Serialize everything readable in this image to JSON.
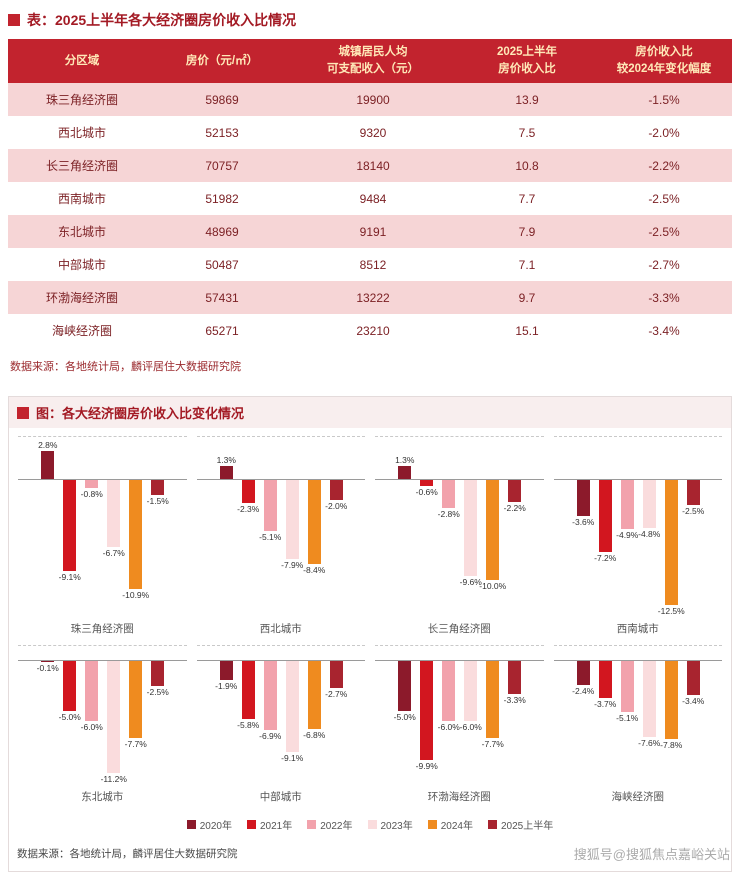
{
  "table_section": {
    "title": "表：2025上半年各大经济圈房价收入比情况",
    "headers": [
      "分区域",
      "房价（元/㎡）",
      "城镇居民人均\n可支配收入（元）",
      "2025上半年\n房价收入比",
      "房价收入比\n较2024年变化幅度"
    ],
    "rows": [
      [
        "珠三角经济圈",
        "59869",
        "19900",
        "13.9",
        "-1.5%"
      ],
      [
        "西北城市",
        "52153",
        "9320",
        "7.5",
        "-2.0%"
      ],
      [
        "长三角经济圈",
        "70757",
        "18140",
        "10.8",
        "-2.2%"
      ],
      [
        "西南城市",
        "51982",
        "9484",
        "7.7",
        "-2.5%"
      ],
      [
        "东北城市",
        "48969",
        "9191",
        "7.9",
        "-2.5%"
      ],
      [
        "中部城市",
        "50487",
        "8512",
        "7.1",
        "-2.7%"
      ],
      [
        "环渤海经济圈",
        "57431",
        "13222",
        "9.7",
        "-3.3%"
      ],
      [
        "海峡经济圈",
        "65271",
        "23210",
        "15.1",
        "-3.4%"
      ]
    ],
    "source": "数据来源：各地统计局，麟评居住大数据研究院"
  },
  "chart_section": {
    "title": "图：各大经济圈房价收入比变化情况",
    "source": "数据来源：各地统计局，麟评居住大数据研究院"
  },
  "chart_data": {
    "type": "bar",
    "title": "各大经济圈房价收入比变化情况",
    "unit": "%",
    "grid": "zero-axis per mini chart, dashed top gridline",
    "legend_position": "bottom",
    "layout": {
      "rows": 2,
      "cols": 4,
      "value_labels": true
    },
    "categories": [
      "珠三角经济圈",
      "西北城市",
      "长三角经济圈",
      "西南城市",
      "东北城市",
      "中部城市",
      "环渤海经济圈",
      "海峡经济圈"
    ],
    "series": [
      {
        "name": "2020年",
        "color": "#8C1A2B",
        "values": [
          2.8,
          1.3,
          1.3,
          -3.6,
          -0.1,
          -1.9,
          -5.0,
          -2.4
        ]
      },
      {
        "name": "2021年",
        "color": "#D2161F",
        "values": [
          -9.1,
          -2.3,
          -0.6,
          -7.2,
          -5.0,
          -5.8,
          -9.9,
          -3.7
        ]
      },
      {
        "name": "2022年",
        "color": "#F2A2AC",
        "values": [
          -0.8,
          -5.1,
          -2.8,
          -4.9,
          -6.0,
          -6.9,
          -6.0,
          -5.1
        ]
      },
      {
        "name": "2023年",
        "color": "#FADCDD",
        "values": [
          -6.7,
          -7.9,
          -9.6,
          -4.8,
          -11.2,
          -9.1,
          -6.0,
          -7.6
        ]
      },
      {
        "name": "2024年",
        "color": "#EF8B1F",
        "values": [
          -10.9,
          -8.4,
          -10.0,
          -12.5,
          -7.7,
          -6.8,
          -7.7,
          -7.8
        ]
      },
      {
        "name": "2025上半年",
        "color": "#A8242F",
        "values": [
          -1.5,
          -2.0,
          -2.2,
          -2.5,
          -2.5,
          -2.7,
          -3.3,
          -3.4
        ]
      }
    ]
  },
  "watermark": "搜狐号@搜狐焦点嘉峪关站"
}
